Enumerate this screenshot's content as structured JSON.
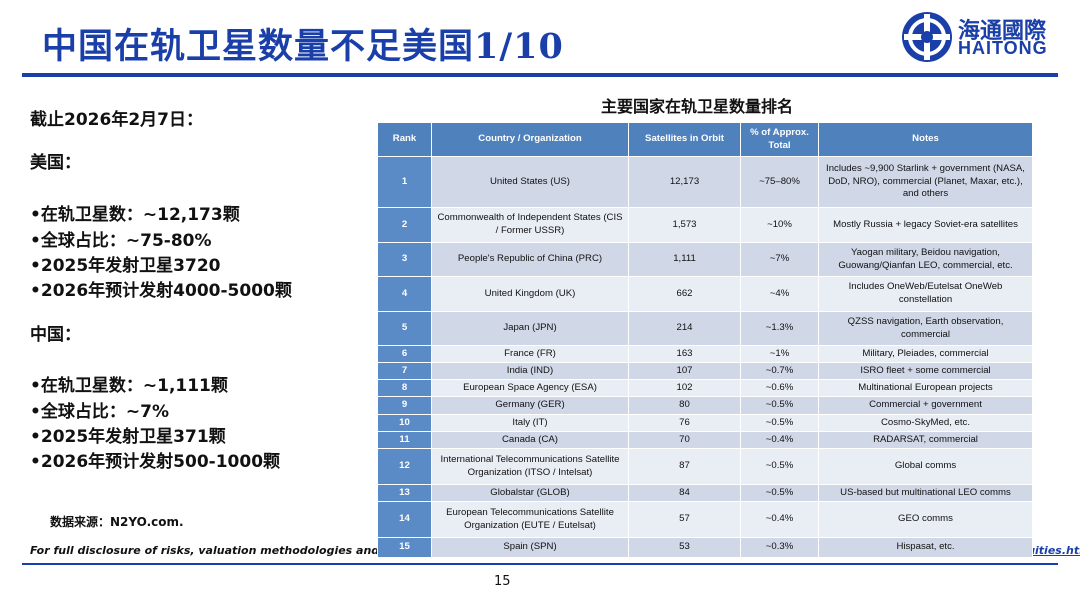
{
  "header": {
    "title": "中国在轨卫星数量不足美国1/10",
    "logo_cn": "海通國際",
    "logo_en": "HAITONG"
  },
  "left": {
    "date": "截止2026年2月7日：",
    "sections": [
      {
        "heading": "美国：",
        "bullets": [
          "•在轨卫星数：~12,173颗",
          "•全球占比：~75-80%",
          "•2025年发射卫星3720",
          "•2026年预计发射4000-5000颗"
        ]
      },
      {
        "heading": "中国：",
        "bullets": [
          "•在轨卫星数：~1,111颗",
          "•全球占比：~7%",
          "•2025年发射卫星371颗",
          "•2026年预计发射500-1000颗"
        ]
      }
    ],
    "source": "数据来源：N2YO.com."
  },
  "table": {
    "title": "主要国家在轨卫星数量排名",
    "columns": [
      "Rank",
      "Country / Organization",
      "Satellites in Orbit",
      "% of Approx. Total",
      "Notes"
    ],
    "rows": [
      [
        "1",
        "United States (US)",
        "12,173",
        "~75–80%",
        "Includes ~9,900 Starlink + government (NASA, DoD, NRO), commercial (Planet, Maxar, etc.), and others"
      ],
      [
        "2",
        "Commonwealth of Independent States (CIS / Former USSR)",
        "1,573",
        "~10%",
        "Mostly Russia + legacy Soviet-era satellites"
      ],
      [
        "3",
        "People's Republic of China (PRC)",
        "1,111",
        "~7%",
        "Yaogan military, Beidou navigation, Guowang/Qianfan LEO, commercial, etc."
      ],
      [
        "4",
        "United Kingdom (UK)",
        "662",
        "~4%",
        "Includes OneWeb/Eutelsat OneWeb constellation"
      ],
      [
        "5",
        "Japan (JPN)",
        "214",
        "~1.3%",
        "QZSS navigation, Earth observation, commercial"
      ],
      [
        "6",
        "France (FR)",
        "163",
        "~1%",
        "Military, Pleiades, commercial"
      ],
      [
        "7",
        "India (IND)",
        "107",
        "~0.7%",
        "ISRO fleet + some commercial"
      ],
      [
        "8",
        "European Space Agency (ESA)",
        "102",
        "~0.6%",
        "Multinational European projects"
      ],
      [
        "9",
        "Germany (GER)",
        "80",
        "~0.5%",
        "Commercial + government"
      ],
      [
        "10",
        "Italy (IT)",
        "76",
        "~0.5%",
        "Cosmo-SkyMed, etc."
      ],
      [
        "11",
        "Canada (CA)",
        "70",
        "~0.4%",
        "RADARSAT, commercial"
      ],
      [
        "12",
        "International Telecommunications Satellite Organization (ITSO / Intelsat)",
        "87",
        "~0.5%",
        "Global comms"
      ],
      [
        "13",
        "Globalstar (GLOB)",
        "84",
        "~0.5%",
        "US-based but multinational LEO comms"
      ],
      [
        "14",
        "European Telecommunications Satellite Organization (EUTE / Eutelsat)",
        "57",
        "~0.4%",
        "GEO comms"
      ],
      [
        "15",
        "Spain (SPN)",
        "53",
        "~0.3%",
        "Hispasat, etc."
      ]
    ]
  },
  "footer": {
    "disclaimer": "For full disclosure of risks, valuation methodologies and target price formation on all HTI rated stocks, please refer to the latest full report on our website at ",
    "link": "equities.htisec.com",
    "page": "15"
  }
}
